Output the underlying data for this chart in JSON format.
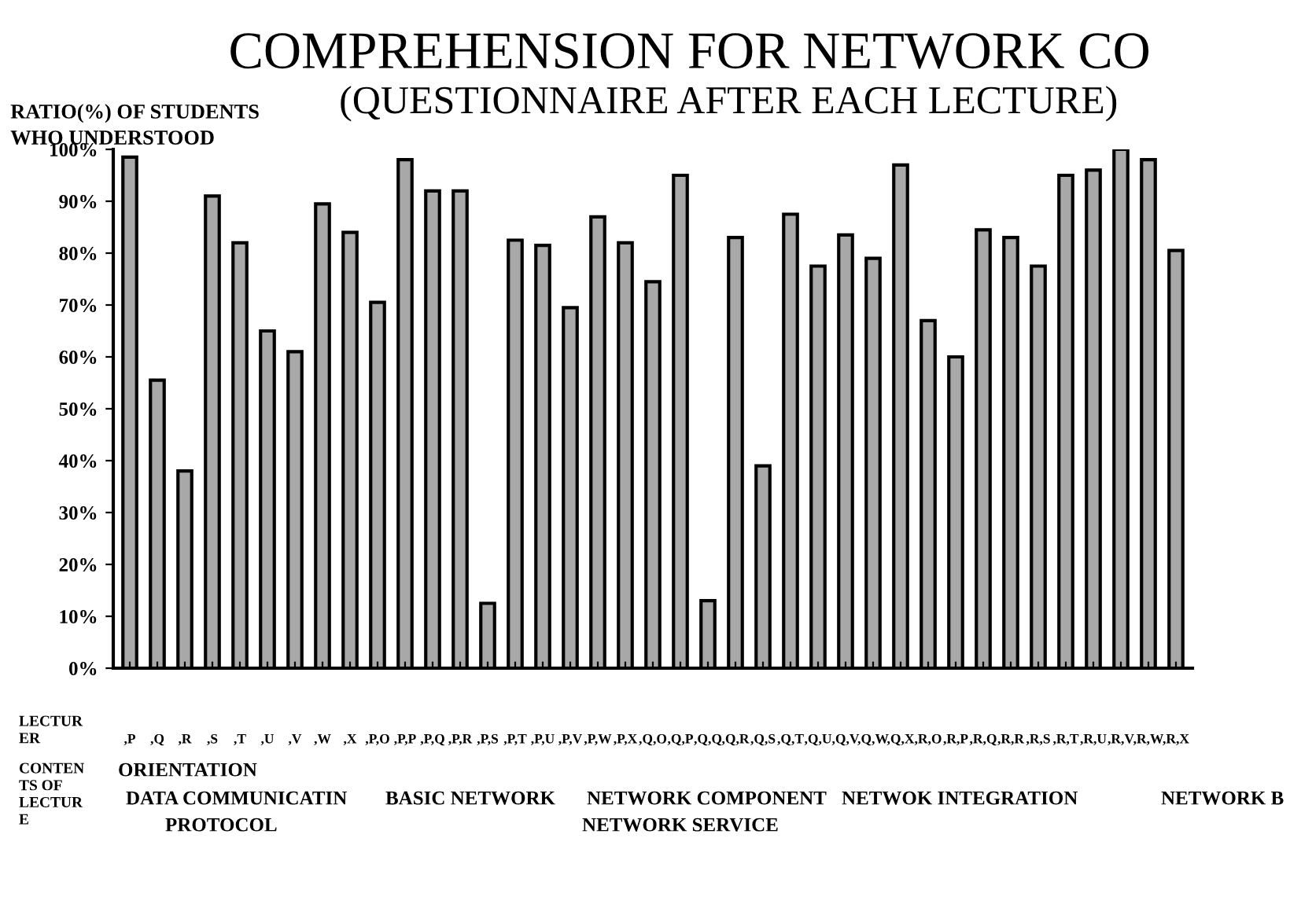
{
  "chart_data": {
    "type": "bar",
    "title": "COMPREHENSION FOR NETWORK CO",
    "subtitle": "(QUESTIONNAIRE AFTER EACH LECTURE)",
    "ylabel": "RATIO(%) OF STUDENTS\nWHO UNDERSTOOD",
    "categories": [
      ",P",
      ",Q",
      ",R",
      ",S",
      ",T",
      ",U",
      ",V",
      ",W",
      ",X",
      ",P,O",
      ",P,P",
      ",P,Q",
      ",P,R",
      ",P,S",
      ",P,T",
      ",P,U",
      ",P,V",
      ",P,W",
      ",P,X",
      ",Q,O",
      ",Q,P",
      ",Q,Q",
      ",Q,R",
      ",Q,S",
      ",Q,T",
      ",Q,U",
      ",Q,V",
      ",Q,W",
      ",Q,X",
      ",R,O",
      ",R,P",
      ",R,Q",
      ",R,R",
      ",R,S",
      ",R,T",
      ",R,U",
      ",R,V",
      ",R,W",
      ",R,X"
    ],
    "values": [
      98.5,
      55.5,
      38,
      91,
      82,
      65,
      61,
      89.5,
      84,
      70.5,
      98,
      92,
      92,
      12.5,
      82.5,
      81.5,
      69.5,
      87,
      82,
      74.5,
      95,
      13,
      83,
      39,
      87.5,
      77.5,
      83.5,
      79,
      97,
      67,
      60,
      84.5,
      83,
      77.5,
      95,
      96,
      100,
      98,
      80.5
    ],
    "color": "#a8a8a8",
    "ylim": [
      0,
      100
    ],
    "yticks": [
      {
        "value": 0,
        "label": "0%"
      },
      {
        "value": 10,
        "label": "10%"
      },
      {
        "value": 20,
        "label": "20%"
      },
      {
        "value": 30,
        "label": "30%"
      },
      {
        "value": 40,
        "label": "40%"
      },
      {
        "value": 50,
        "label": "50%"
      },
      {
        "value": 60,
        "label": "60%"
      },
      {
        "value": 70,
        "label": "70%"
      },
      {
        "value": 80,
        "label": "80%"
      },
      {
        "value": 90,
        "label": "90%"
      },
      {
        "value": 100,
        "label": "100%"
      }
    ],
    "grid": false,
    "annotations": [
      "LECTUR\nER",
      "CONTEN\nTS OF\nLECTUR\nE",
      "ORIENTATION",
      "DATA COMMUNICATIN",
      "PROTOCOL",
      "BASIC NETWORK",
      "NETWORK COMPONENT",
      "NETWORK SERVICE",
      "NETWOK INTEGRATION",
      "NETWORK B"
    ]
  }
}
